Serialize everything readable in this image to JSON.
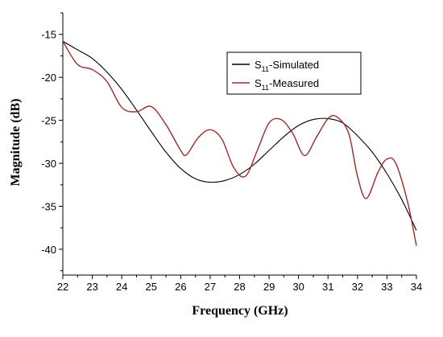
{
  "chart_data": {
    "type": "line",
    "xlabel": "Frequency (GHz)",
    "ylabel": "Magnitude (dB)",
    "xlim": [
      22,
      34
    ],
    "ylim": [
      -43,
      -12.5
    ],
    "xticks": [
      22,
      23,
      24,
      25,
      26,
      27,
      28,
      29,
      30,
      31,
      32,
      33,
      34
    ],
    "yticks": [
      -15,
      -20,
      -25,
      -30,
      -35,
      -40
    ],
    "grid": false,
    "legend_position": "top-right",
    "series": [
      {
        "name_main": "S",
        "name_sub": "11",
        "name_rest": "-Simulated",
        "color": "#000000",
        "x": [
          22,
          22.5,
          23,
          23.5,
          24,
          24.5,
          25,
          25.5,
          26,
          26.5,
          27,
          27.5,
          28,
          28.5,
          29,
          29.5,
          30,
          30.5,
          31,
          31.5,
          32,
          32.5,
          33,
          33.5,
          34
        ],
        "y": [
          -15.8,
          -16.8,
          -17.8,
          -19.4,
          -21.4,
          -23.8,
          -26.3,
          -28.7,
          -30.6,
          -31.8,
          -32.2,
          -32.0,
          -31.3,
          -30.1,
          -28.5,
          -26.9,
          -25.6,
          -24.9,
          -24.8,
          -25.3,
          -26.8,
          -28.7,
          -31.2,
          -34.2,
          -37.8
        ]
      },
      {
        "name_main": "S",
        "name_sub": "11",
        "name_rest": "-Measured",
        "color": "#9b2b2b",
        "x": [
          22,
          22.5,
          23,
          23.5,
          24,
          24.5,
          25,
          25.5,
          26,
          26.2,
          26.6,
          27,
          27.4,
          27.8,
          28.2,
          28.6,
          29,
          29.4,
          29.8,
          30.2,
          30.6,
          31,
          31.3,
          31.7,
          32,
          32.3,
          32.7,
          33,
          33.3,
          33.7,
          34
        ],
        "y": [
          -15.8,
          -18.5,
          -19.1,
          -20.5,
          -23.5,
          -24.0,
          -23.4,
          -25.5,
          -28.5,
          -29.0,
          -27.0,
          -26.1,
          -27.2,
          -30.5,
          -31.5,
          -28.5,
          -25.3,
          -24.9,
          -26.5,
          -29.1,
          -27.0,
          -24.8,
          -24.6,
          -26.5,
          -31.5,
          -34.1,
          -31.0,
          -29.5,
          -30.0,
          -34.5,
          -39.6
        ]
      }
    ]
  }
}
